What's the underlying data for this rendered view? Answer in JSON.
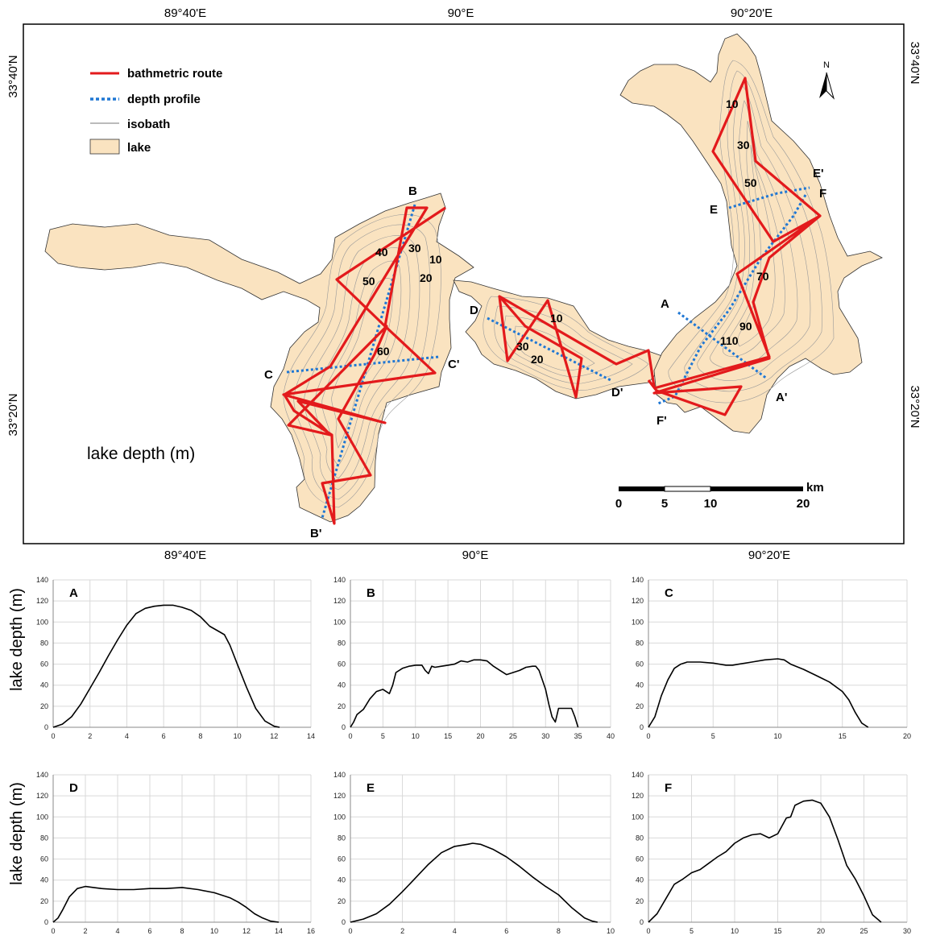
{
  "map": {
    "top_longitudes": [
      "89°40'E",
      "90°E",
      "90°20'E"
    ],
    "bottom_longitudes": [
      "89°40'E",
      "90°E",
      "90°20'E"
    ],
    "latitudes_left": [
      "33°40'N",
      "33°20'N"
    ],
    "latitudes_right": [
      "33°40'N",
      "33°20'N"
    ],
    "legend": {
      "route": "bathmetric route",
      "profile": "depth profile",
      "isobath": "isobath",
      "lake": "lake"
    },
    "north_label": "N",
    "caption": "lake depth (m)",
    "scale_bar": {
      "unit": "km",
      "ticks": [
        "0",
        "5",
        "10",
        "20"
      ]
    },
    "profile_endpoints": [
      "A",
      "A'",
      "B",
      "B'",
      "C",
      "C'",
      "D",
      "D'",
      "E",
      "E'",
      "F",
      "F'"
    ],
    "depth_labels": [
      "10",
      "30",
      "50",
      "70",
      "90",
      "110",
      "40",
      "30",
      "10",
      "50",
      "20",
      "60",
      "10",
      "30",
      "20"
    ],
    "colors": {
      "lake": "#fae3c0",
      "route": "#e31a1c",
      "profile": "#1f77d4",
      "isobath": "#999999"
    }
  },
  "profiles": {
    "y_axis_title": "lake depth (m)",
    "y_ticks": [
      "0",
      "20",
      "40",
      "60",
      "80",
      "100",
      "120",
      "140"
    ]
  },
  "chart_data": [
    {
      "type": "line",
      "title": "A",
      "xlabel": "",
      "ylabel": "lake depth (m)",
      "xlim": [
        0,
        14
      ],
      "ylim": [
        0,
        140
      ],
      "xticks": [
        0,
        2,
        4,
        6,
        8,
        10,
        12,
        14
      ],
      "x": [
        0,
        0.5,
        1,
        1.5,
        2,
        2.5,
        3,
        3.5,
        4,
        4.5,
        5,
        5.5,
        6,
        6.5,
        7,
        7.5,
        8,
        8.5,
        9,
        9.3,
        9.6,
        10,
        10.5,
        11,
        11.5,
        12,
        12.3
      ],
      "y": [
        0,
        3,
        10,
        22,
        37,
        52,
        68,
        83,
        97,
        108,
        113,
        115,
        116,
        116,
        114,
        111,
        105,
        96,
        91,
        88,
        78,
        60,
        38,
        18,
        6,
        1,
        0
      ]
    },
    {
      "type": "line",
      "title": "B",
      "xlabel": "",
      "ylabel": "lake depth (m)",
      "xlim": [
        0,
        40
      ],
      "ylim": [
        0,
        140
      ],
      "xticks": [
        0,
        5,
        10,
        15,
        20,
        25,
        30,
        35,
        40
      ],
      "x": [
        0,
        0.5,
        1,
        2,
        3,
        4,
        5,
        5.5,
        6,
        6.5,
        7,
        8,
        9,
        10,
        11,
        11.5,
        12,
        12.5,
        13,
        14,
        15,
        16,
        17,
        18,
        19,
        20,
        21,
        22,
        23,
        24,
        25,
        26,
        27,
        28,
        28.5,
        29,
        30,
        30.5,
        31,
        31.5,
        32,
        33,
        34,
        34.5,
        35
      ],
      "y": [
        0,
        5,
        12,
        17,
        27,
        34,
        36,
        34,
        32,
        40,
        52,
        56,
        58,
        59,
        59,
        54,
        51,
        58,
        57,
        58,
        59,
        60,
        63,
        62,
        64,
        64,
        63,
        58,
        54,
        50,
        52,
        54,
        57,
        58,
        58,
        54,
        36,
        22,
        10,
        5,
        18,
        18,
        18,
        10,
        0
      ]
    },
    {
      "type": "line",
      "title": "C",
      "xlabel": "",
      "ylabel": "lake depth (m)",
      "xlim": [
        0,
        20
      ],
      "ylim": [
        0,
        140
      ],
      "xticks": [
        0,
        5,
        10,
        15,
        20
      ],
      "x": [
        0,
        0.5,
        1,
        1.5,
        2,
        2.5,
        3,
        4,
        5,
        6,
        6.5,
        7,
        8,
        9,
        10,
        10.5,
        11,
        12,
        13,
        14,
        15,
        15.5,
        16,
        16.5,
        17
      ],
      "y": [
        0,
        10,
        30,
        45,
        56,
        60,
        62,
        62,
        61,
        59,
        59,
        60,
        62,
        64,
        65,
        64,
        60,
        55,
        49,
        43,
        34,
        26,
        14,
        4,
        0
      ]
    },
    {
      "type": "line",
      "title": "D",
      "xlabel": "",
      "ylabel": "lake depth (m)",
      "xlim": [
        0,
        16
      ],
      "ylim": [
        0,
        140
      ],
      "xticks": [
        0,
        2,
        4,
        6,
        8,
        10,
        12,
        14,
        16
      ],
      "x": [
        0,
        0.3,
        0.6,
        1,
        1.5,
        2,
        2.5,
        3,
        4,
        5,
        6,
        7,
        8,
        9,
        10,
        11,
        11.5,
        12,
        12.5,
        13,
        13.5,
        14
      ],
      "y": [
        0,
        4,
        12,
        24,
        32,
        34,
        33,
        32,
        31,
        31,
        32,
        32,
        33,
        31,
        28,
        23,
        19,
        14,
        8,
        4,
        1,
        0
      ]
    },
    {
      "type": "line",
      "title": "E",
      "xlabel": "",
      "ylabel": "lake depth (m)",
      "xlim": [
        0,
        10
      ],
      "ylim": [
        0,
        140
      ],
      "xticks": [
        0,
        2,
        4,
        6,
        8,
        10
      ],
      "x": [
        0,
        0.5,
        1,
        1.5,
        2,
        2.5,
        3,
        3.5,
        4,
        4.5,
        4.7,
        5,
        5.5,
        6,
        6.5,
        7,
        7.5,
        8,
        8.5,
        9,
        9.3,
        9.5
      ],
      "y": [
        0,
        3,
        8,
        17,
        29,
        42,
        55,
        66,
        72,
        74,
        75,
        74,
        69,
        62,
        53,
        43,
        34,
        26,
        14,
        4,
        1,
        0
      ]
    },
    {
      "type": "line",
      "title": "F",
      "xlabel": "",
      "ylabel": "lake depth (m)",
      "xlim": [
        0,
        30
      ],
      "ylim": [
        0,
        140
      ],
      "xticks": [
        0,
        5,
        10,
        15,
        20,
        25,
        30
      ],
      "x": [
        0,
        1,
        2,
        3,
        4,
        5,
        6,
        7,
        8,
        9,
        10,
        11,
        12,
        13,
        14,
        15,
        16,
        16.5,
        17,
        18,
        19,
        20,
        21,
        22,
        23,
        24,
        25,
        26,
        27
      ],
      "y": [
        0,
        8,
        22,
        36,
        41,
        47,
        50,
        56,
        62,
        67,
        75,
        80,
        83,
        84,
        80,
        84,
        99,
        100,
        111,
        115,
        116,
        113,
        100,
        78,
        54,
        41,
        25,
        7,
        0
      ]
    }
  ]
}
